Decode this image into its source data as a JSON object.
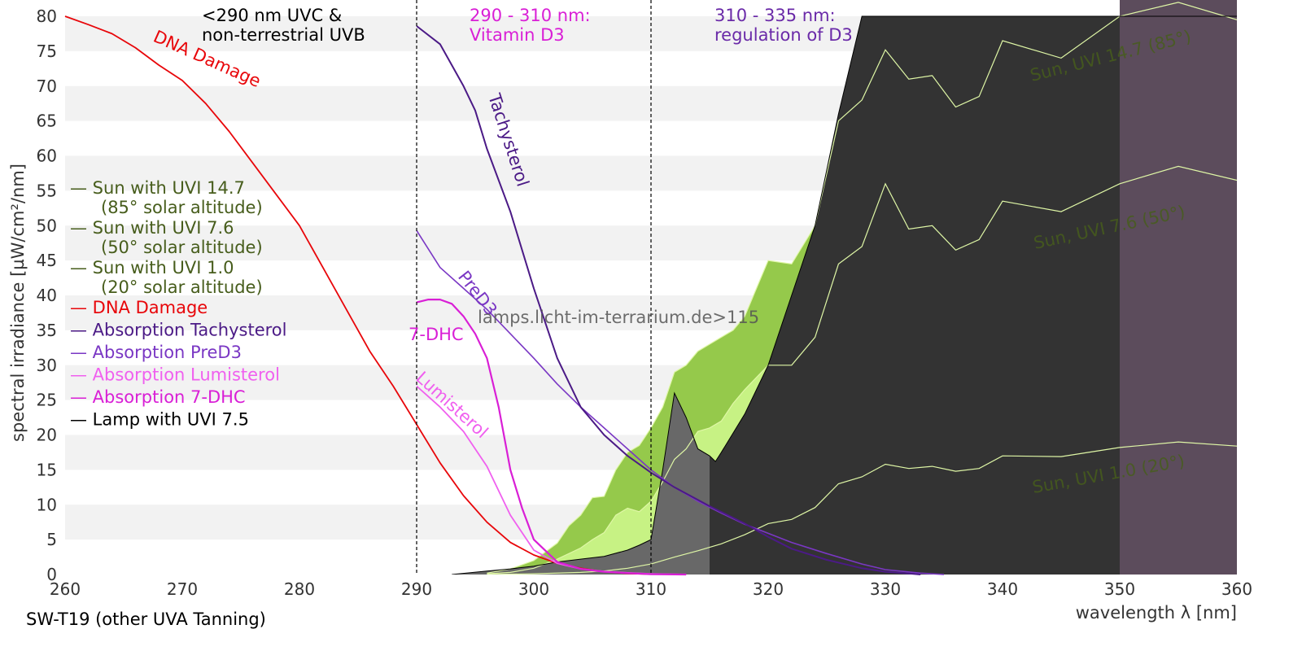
{
  "lamp_name": "SW-T19 (other UVA Tanning)",
  "watermark": "lamps.licht-im-terrarium.de>115",
  "colors": {
    "dna": "#e8060a",
    "tachysterol": "#4b1a86",
    "pred3": "#7a37c4",
    "lumisterol": "#f060ef",
    "dhc": "#d91fd6",
    "lamp": "#000000",
    "sun": "#475d1c",
    "sun_fill_high": "#95c94b",
    "sun_fill_mid": "#c7f284",
    "sun_line": "#dff7a6",
    "lamp_fill_dark": "#333333",
    "lamp_fill_mid": "#686868",
    "uva_band": "#5c4c5c",
    "grid_band": "#f2f2f2",
    "dashed": "#000000",
    "lamp_name": "#101090"
  },
  "regions": [
    {
      "lines": [
        "<290 nm UVC &",
        "non-terrestrial UVB"
      ],
      "color": "#000000"
    },
    {
      "lines": [
        "290 - 310 nm:",
        "Vitamin D3"
      ],
      "color": "#d91fd6"
    },
    {
      "lines": [
        "310 - 335 nm:",
        "regulation of D3"
      ],
      "color": "#6a2aa8"
    }
  ],
  "curve_labels": {
    "dna": "DNA Damage",
    "tachysterol": "Tachysterol",
    "pred3": "PreD3",
    "dhc": "7-DHC",
    "lumisterol": "Lumisterol",
    "sun_high": "Sun, UVI 14.7 (85°)",
    "sun_mid": "Sun, UVI 7.6 (50°)",
    "sun_low": "Sun, UVI 1.0 (20°)"
  },
  "legend": [
    {
      "line1": "— Sun with UVI 14.7",
      "line2": "(85° solar altitude)",
      "color": "#475d1c"
    },
    {
      "line1": "— Sun with UVI 7.6",
      "line2": "(50° solar altitude)",
      "color": "#475d1c"
    },
    {
      "line1": "— Sun with UVI 1.0",
      "line2": "(20° solar altitude)",
      "color": "#475d1c"
    },
    {
      "line1": "— DNA Damage",
      "line2": "",
      "color": "#e8060a"
    },
    {
      "line1": "— Absorption Tachysterol",
      "line2": "",
      "color": "#4b1a86"
    },
    {
      "line1": "— Absorption PreD3",
      "line2": "",
      "color": "#7a37c4"
    },
    {
      "line1": "— Absorption Lumisterol",
      "line2": "",
      "color": "#f060ef"
    },
    {
      "line1": "— Absorption 7-DHC",
      "line2": "",
      "color": "#d91fd6"
    },
    {
      "line1": "— Lamp with UVI 7.5",
      "line2": "",
      "color": "#000000"
    }
  ],
  "chart_data": {
    "type": "line",
    "xlabel": "wavelength λ [nm]",
    "ylabel": "spectral irradiance [µW/cm²/nm]",
    "xlim": [
      260,
      360
    ],
    "ylim": [
      0,
      80
    ],
    "xticks": [
      260,
      270,
      280,
      290,
      300,
      310,
      320,
      330,
      340,
      350,
      360
    ],
    "yticks": [
      0,
      5,
      10,
      15,
      20,
      25,
      30,
      35,
      40,
      45,
      50,
      55,
      60,
      65,
      70,
      75,
      80
    ],
    "grid": "horizontal bands",
    "legend_position": "left",
    "region_boundaries": [
      290,
      310
    ],
    "uva_band": [
      350,
      360
    ],
    "series": [
      {
        "name": "DNA Damage",
        "key": "dna",
        "x": [
          260,
          262,
          264,
          266,
          268,
          270,
          272,
          274,
          276,
          278,
          280,
          282,
          284,
          286,
          288,
          290,
          292,
          294,
          296,
          298,
          300,
          302,
          304,
          306,
          308,
          310
        ],
        "y": [
          80,
          78.8,
          77.5,
          75.5,
          73,
          70.8,
          67.5,
          63.5,
          59,
          54.5,
          50,
          44,
          38,
          32,
          27,
          21.5,
          16,
          11.3,
          7.5,
          4.6,
          2.8,
          1.6,
          0.9,
          0.4,
          0.15,
          0.05
        ]
      },
      {
        "name": "Absorption Tachysterol",
        "key": "tachysterol",
        "x": [
          290,
          292,
          294,
          295,
          296,
          298,
          300,
          302,
          304,
          306,
          308,
          310,
          312,
          315,
          318,
          320,
          322,
          325,
          328,
          330,
          332,
          333
        ],
        "y": [
          78.6,
          76,
          70,
          66.5,
          61,
          52,
          41,
          31,
          24,
          20,
          17,
          14.6,
          12.5,
          9.8,
          7.3,
          5.4,
          3.7,
          2.1,
          0.9,
          0.4,
          0.15,
          0
        ]
      },
      {
        "name": "Absorption PreD3",
        "key": "pred3",
        "x": [
          290,
          292,
          294,
          296,
          298,
          300,
          302,
          304,
          306,
          308,
          310,
          312,
          314,
          316,
          318,
          320,
          322,
          325,
          328,
          330,
          333,
          335
        ],
        "y": [
          49.3,
          44,
          41,
          38,
          34.5,
          31,
          27.3,
          24,
          21,
          18,
          15,
          12.5,
          10.5,
          8.8,
          7.2,
          5.9,
          4.6,
          3,
          1.5,
          0.7,
          0.2,
          0
        ]
      },
      {
        "name": "Absorption Lumisterol",
        "key": "lumisterol",
        "x": [
          290,
          291,
          292,
          294,
          296,
          298,
          300,
          302,
          304,
          306,
          308,
          310,
          313
        ],
        "y": [
          27,
          25.5,
          24,
          20.5,
          15.5,
          8.5,
          3.5,
          1.6,
          0.8,
          0.45,
          0.25,
          0.1,
          0
        ]
      },
      {
        "name": "Absorption 7-DHC",
        "key": "dhc",
        "x": [
          290,
          291,
          292,
          293,
          294,
          295,
          296,
          297,
          298,
          299,
          300,
          302,
          304,
          306,
          308,
          310,
          313
        ],
        "y": [
          39,
          39.4,
          39.4,
          38.8,
          37,
          34.5,
          31,
          24,
          15,
          9.5,
          5,
          1.8,
          0.8,
          0.4,
          0.2,
          0.05,
          0
        ]
      },
      {
        "name": "Sun with UVI 14.7",
        "key": "sun_high",
        "x": [
          296,
          298,
          300,
          302,
          303,
          304,
          305,
          306,
          307,
          308,
          309,
          310,
          311,
          312,
          313,
          314,
          315,
          316,
          317,
          318,
          319,
          320,
          322,
          324,
          326,
          328,
          330,
          332,
          334,
          336,
          338,
          340,
          345,
          350,
          355,
          360
        ],
        "y": [
          0.2,
          0.8,
          2,
          4.5,
          7,
          8.5,
          11,
          11.2,
          15,
          17.5,
          18.5,
          21,
          24,
          29,
          30,
          32,
          33,
          34,
          35,
          37,
          41,
          45,
          44.5,
          50,
          65,
          68,
          75.2,
          71,
          71.5,
          67,
          68.5,
          76.5,
          74,
          80,
          82,
          79.5
        ]
      },
      {
        "name": "Sun with UVI 7.6",
        "key": "sun_mid",
        "x": [
          296,
          298,
          300,
          302,
          304,
          305,
          306,
          307,
          308,
          309,
          310,
          311,
          312,
          313,
          314,
          315,
          316,
          317,
          318,
          320,
          322,
          324,
          326,
          328,
          330,
          332,
          334,
          336,
          338,
          340,
          345,
          350,
          355,
          360
        ],
        "y": [
          0.1,
          0.3,
          0.9,
          2.2,
          3.8,
          5,
          6,
          8.5,
          9.5,
          9,
          10.5,
          13.3,
          16.5,
          18,
          20.5,
          21,
          22,
          24.5,
          26.5,
          30,
          30,
          34,
          44.5,
          47,
          56,
          49.5,
          50,
          46.5,
          48,
          53.5,
          52,
          56,
          58.5,
          56.5
        ]
      },
      {
        "name": "Sun with UVI 1.0",
        "key": "sun_low",
        "x": [
          296,
          300,
          304,
          306,
          308,
          310,
          312,
          314,
          316,
          318,
          320,
          322,
          324,
          326,
          328,
          330,
          332,
          334,
          336,
          338,
          340,
          345,
          350,
          355,
          360
        ],
        "y": [
          0,
          0.1,
          0.3,
          0.5,
          0.9,
          1.5,
          2.5,
          3.4,
          4.4,
          5.7,
          7.3,
          7.9,
          9.6,
          13,
          14,
          15.8,
          15.2,
          15.5,
          14.8,
          15.2,
          17,
          16.9,
          18.2,
          19,
          18.4
        ]
      },
      {
        "name": "Lamp with UVI 7.5",
        "key": "lamp",
        "x": [
          293,
          296,
          298,
          300,
          302,
          304,
          306,
          308,
          309,
          310,
          311,
          312,
          313,
          314,
          315,
          315.5,
          316,
          318,
          320,
          322,
          324,
          325,
          326,
          327,
          328,
          329,
          360
        ],
        "y": [
          0,
          0.5,
          0.8,
          1.2,
          1.8,
          2.2,
          2.6,
          3.5,
          4.2,
          5,
          15,
          26,
          22.5,
          18,
          17,
          16.2,
          17.5,
          23,
          30,
          40,
          50,
          58,
          66,
          73,
          80,
          80,
          80
        ]
      }
    ]
  }
}
